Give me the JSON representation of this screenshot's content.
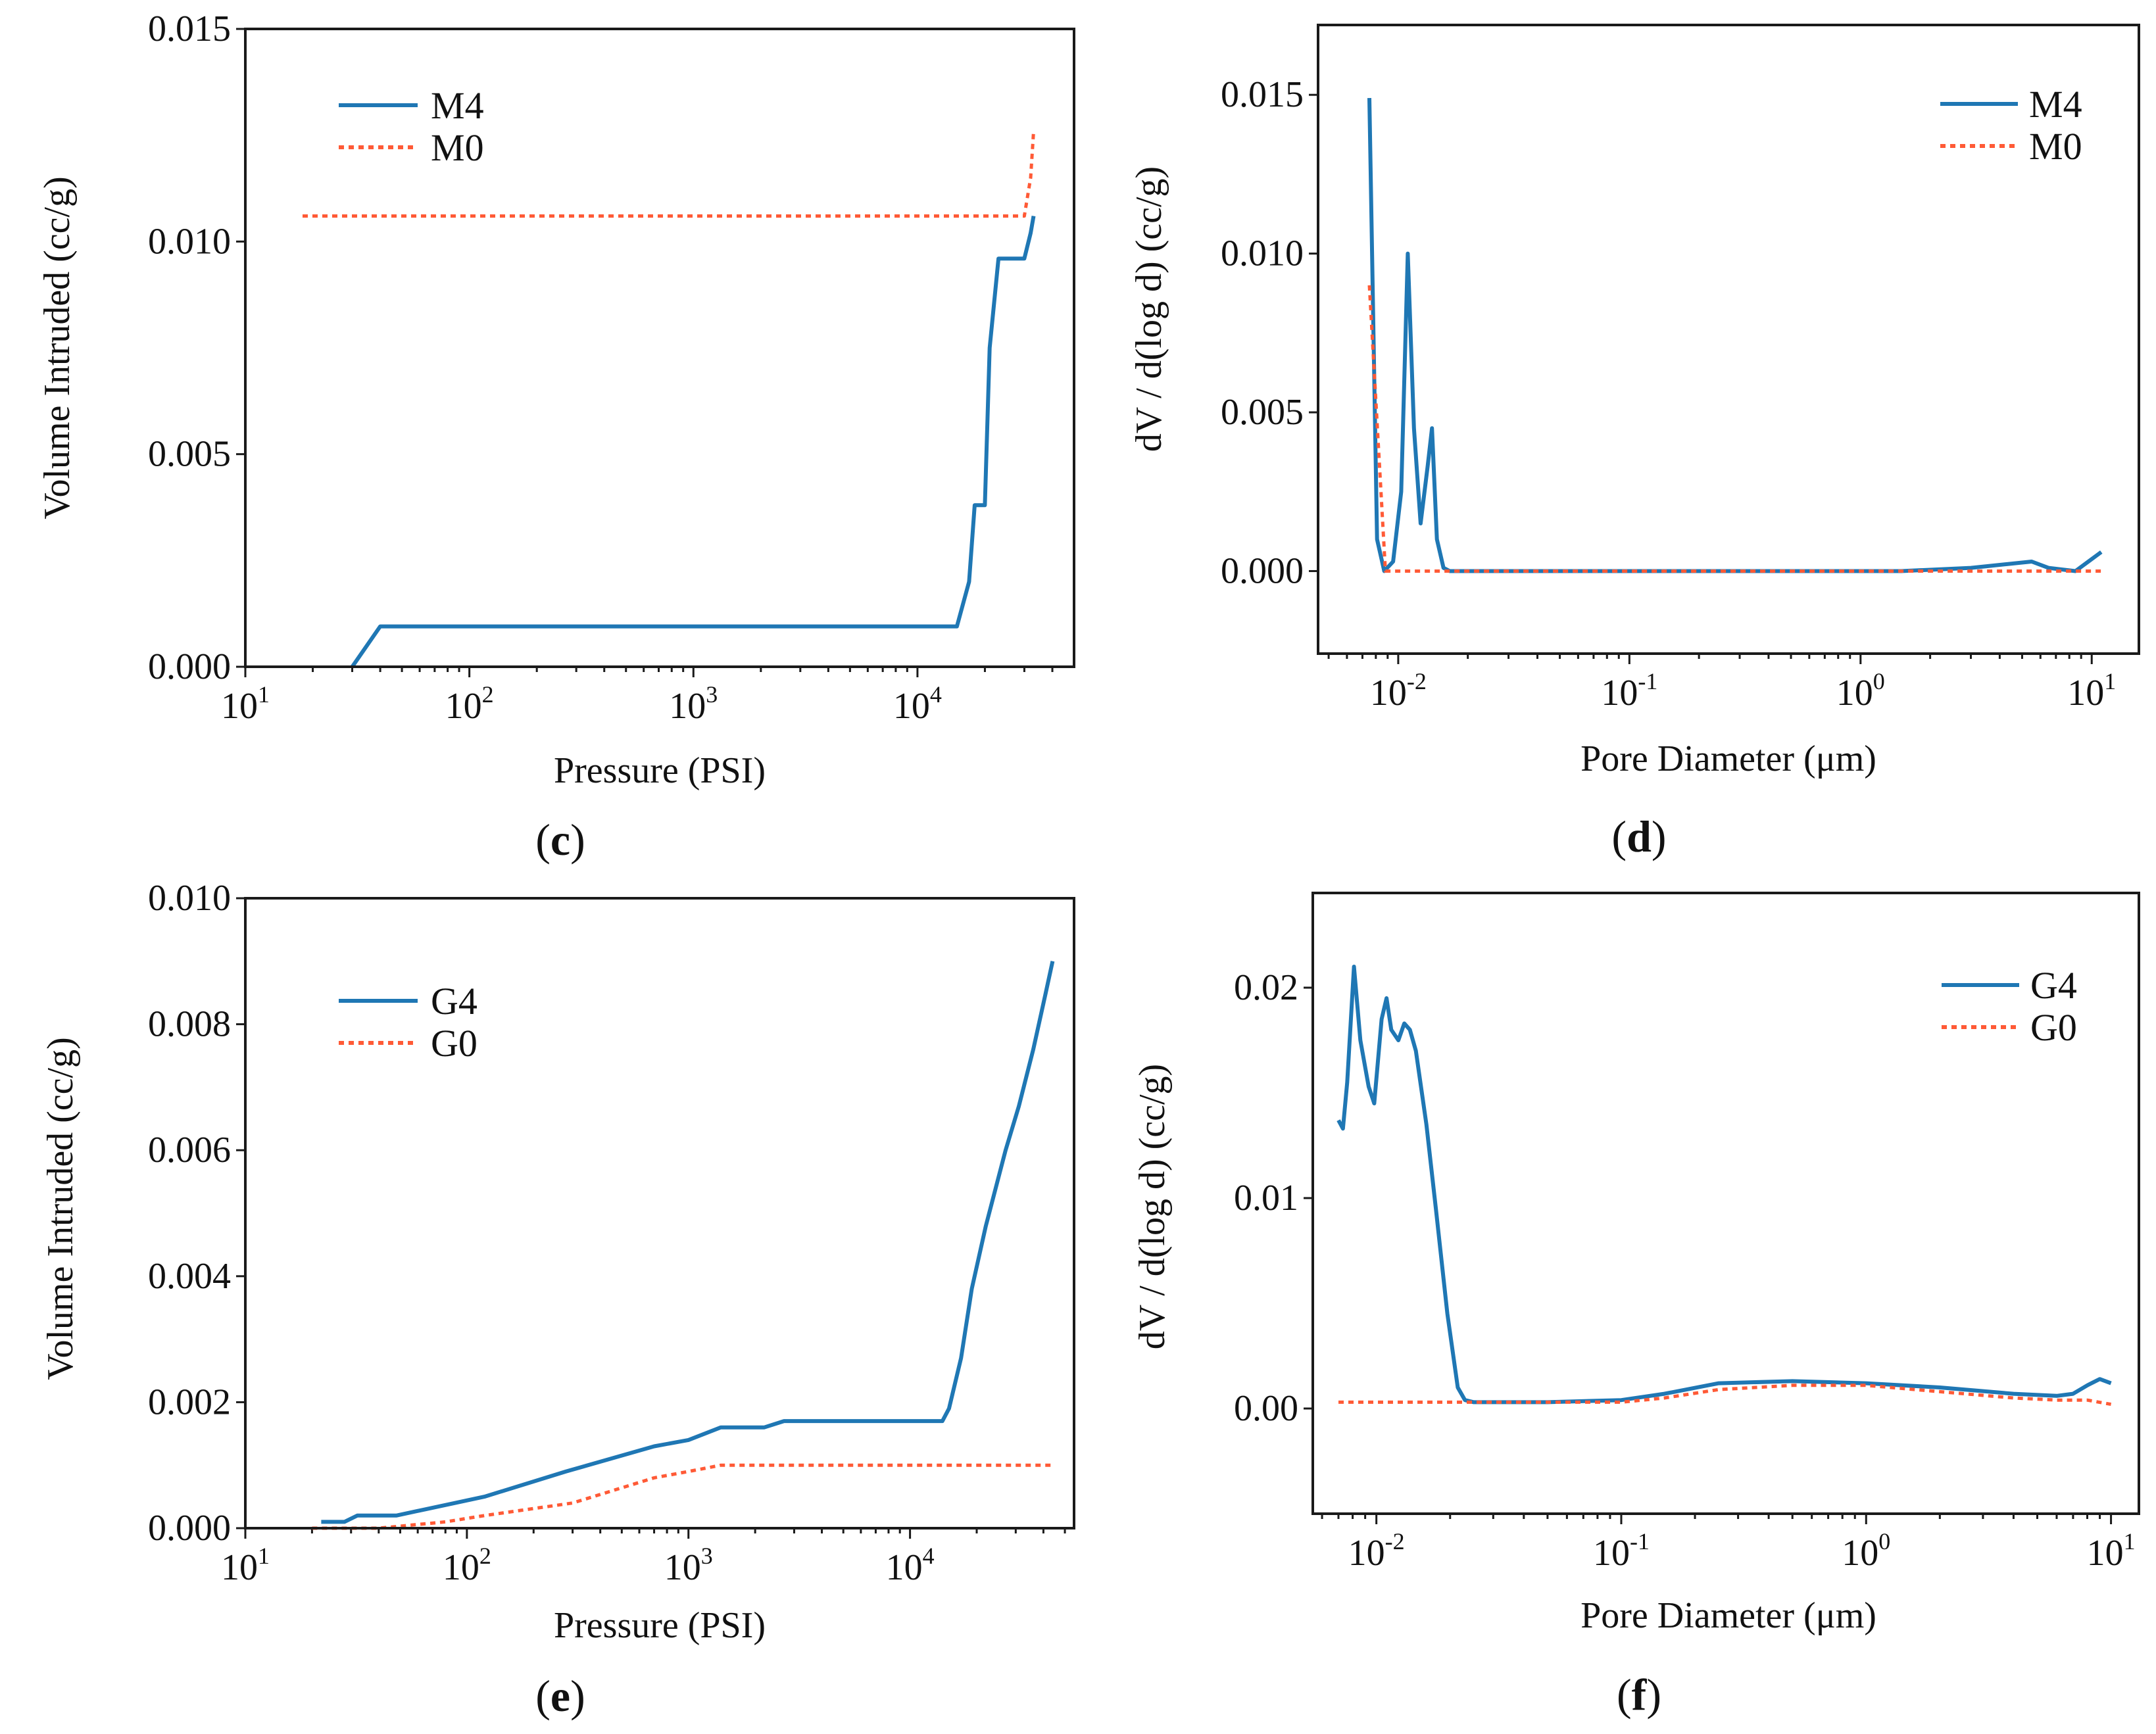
{
  "colors": {
    "series_solid": "#1f77b4",
    "series_dotted": "#ff5a36",
    "axis": "#1a1a1a"
  },
  "chart_data": [
    {
      "panel": "c",
      "type": "line",
      "xscale": "log",
      "xlabel": "Pressure (PSI)",
      "ylabel": "Volume Intruded (cc/g)",
      "xlim": [
        10,
        50000
      ],
      "ylim": [
        0,
        0.015
      ],
      "yticks": [
        "0.000",
        "0.005",
        "0.010",
        "0.015"
      ],
      "xticks": [
        {
          "base": "10",
          "exp": "1"
        },
        {
          "base": "10",
          "exp": "2"
        },
        {
          "base": "10",
          "exp": "3"
        },
        {
          "base": "10",
          "exp": "4"
        }
      ],
      "legend_loc": "upper-left",
      "series": [
        {
          "name": "M4",
          "style": "solid",
          "x": [
            30,
            40,
            15000,
            17000,
            18000,
            20000,
            21000,
            23000,
            25000,
            30000,
            32000,
            33000
          ],
          "y": [
            0,
            0.00095,
            0.00095,
            0.002,
            0.0038,
            0.0038,
            0.0075,
            0.0096,
            0.0096,
            0.0096,
            0.0102,
            0.0106
          ]
        },
        {
          "name": "M0",
          "style": "dotted",
          "x": [
            18,
            30000,
            32000,
            33000
          ],
          "y": [
            0.0106,
            0.0106,
            0.0115,
            0.0126
          ]
        }
      ]
    },
    {
      "panel": "d",
      "type": "line",
      "xscale": "log",
      "xlabel": "Pore Diameter (μm)",
      "ylabel": "dV / d(log d) (cc/g)",
      "xlim": [
        0.0045,
        16
      ],
      "ylim": [
        -0.0026,
        0.0172
      ],
      "yticks": [
        "0.000",
        "0.005",
        "0.010",
        "0.015"
      ],
      "xticks": [
        {
          "base": "10",
          "exp": "-2"
        },
        {
          "base": "10",
          "exp": "-1"
        },
        {
          "base": "10",
          "exp": "0"
        },
        {
          "base": "10",
          "exp": "1"
        }
      ],
      "legend_loc": "upper-right",
      "series": [
        {
          "name": "M4",
          "style": "solid",
          "x": [
            0.0075,
            0.0081,
            0.0087,
            0.0095,
            0.0103,
            0.011,
            0.0117,
            0.0125,
            0.0134,
            0.014,
            0.0147,
            0.0157,
            0.0167,
            0.05,
            0.5,
            1.5,
            3,
            5.5,
            6.5,
            8.5,
            11
          ],
          "y": [
            0.0149,
            0.001,
            0.0,
            0.0003,
            0.0025,
            0.01,
            0.0045,
            0.0015,
            0.0033,
            0.0045,
            0.001,
            0.0001,
            0.0,
            0.0,
            0.0,
            0.0,
            0.0001,
            0.0003,
            0.0001,
            0.0,
            0.0006
          ]
        },
        {
          "name": "M0",
          "style": "dotted",
          "x": [
            0.0075,
            0.0088,
            0.0095,
            11
          ],
          "y": [
            0.009,
            0.0,
            0.0,
            0.0
          ]
        }
      ]
    },
    {
      "panel": "e",
      "type": "line",
      "xscale": "log",
      "xlabel": "Pressure (PSI)",
      "ylabel": "Volume Intruded (cc/g)",
      "xlim": [
        10,
        55000
      ],
      "ylim": [
        0,
        0.01
      ],
      "yticks": [
        "0.000",
        "0.002",
        "0.004",
        "0.006",
        "0.008",
        "0.010"
      ],
      "xticks": [
        {
          "base": "10",
          "exp": "1"
        },
        {
          "base": "10",
          "exp": "2"
        },
        {
          "base": "10",
          "exp": "3"
        },
        {
          "base": "10",
          "exp": "4"
        }
      ],
      "legend_loc": "upper-left",
      "series": [
        {
          "name": "G4",
          "style": "solid",
          "x": [
            22,
            28,
            32,
            48,
            65,
            120,
            280,
            700,
            1000,
            1400,
            2200,
            2700,
            5000,
            14000,
            15000,
            17000,
            19000,
            22000,
            27000,
            31000,
            36000,
            41000,
            44000
          ],
          "y": [
            0.0001,
            0.0001,
            0.0002,
            0.0002,
            0.0003,
            0.0005,
            0.0009,
            0.0013,
            0.0014,
            0.0016,
            0.0016,
            0.0017,
            0.0017,
            0.0017,
            0.0019,
            0.0027,
            0.0038,
            0.0048,
            0.006,
            0.0067,
            0.0076,
            0.0085,
            0.009
          ]
        },
        {
          "name": "G0",
          "style": "dotted",
          "x": [
            20,
            40,
            80,
            120,
            300,
            700,
            1000,
            1400,
            44000
          ],
          "y": [
            0,
            0,
            0.0001,
            0.0002,
            0.0004,
            0.0008,
            0.0009,
            0.001,
            0.001
          ]
        }
      ]
    },
    {
      "panel": "f",
      "type": "line",
      "xscale": "log",
      "xlabel": "Pore Diameter (μm)",
      "ylabel": "dV / d(log d) (cc/g)",
      "xlim": [
        0.0055,
        13
      ],
      "ylim": [
        -0.005,
        0.0245
      ],
      "yticks": [
        "0.00",
        "0.01",
        "0.02"
      ],
      "xticks": [
        {
          "base": "10",
          "exp": "-2"
        },
        {
          "base": "10",
          "exp": "-1"
        },
        {
          "base": "10",
          "exp": "0"
        },
        {
          "base": "10",
          "exp": "1"
        }
      ],
      "legend_loc": "upper-right",
      "series": [
        {
          "name": "G4",
          "style": "solid",
          "x": [
            0.007,
            0.0073,
            0.0076,
            0.0081,
            0.0086,
            0.0093,
            0.0098,
            0.0105,
            0.011,
            0.0115,
            0.0123,
            0.013,
            0.0137,
            0.0145,
            0.016,
            0.0175,
            0.0195,
            0.0215,
            0.023,
            0.025,
            0.05,
            0.1,
            0.15,
            0.25,
            0.5,
            1,
            2,
            4,
            6,
            7,
            8,
            9,
            10
          ],
          "y": [
            0.0137,
            0.0133,
            0.0155,
            0.021,
            0.0175,
            0.0153,
            0.0145,
            0.0185,
            0.0195,
            0.018,
            0.0175,
            0.0183,
            0.018,
            0.017,
            0.0135,
            0.0095,
            0.0045,
            0.001,
            0.0004,
            0.0003,
            0.0003,
            0.0004,
            0.0007,
            0.0012,
            0.0013,
            0.0012,
            0.001,
            0.0007,
            0.0006,
            0.0007,
            0.0011,
            0.0014,
            0.0012
          ]
        },
        {
          "name": "G0",
          "style": "dotted",
          "x": [
            0.007,
            0.025,
            0.1,
            0.15,
            0.25,
            0.5,
            1,
            2,
            4,
            6,
            8,
            10
          ],
          "y": [
            0.0003,
            0.0003,
            0.0003,
            0.0005,
            0.0009,
            0.0011,
            0.0011,
            0.0008,
            0.0005,
            0.0004,
            0.0004,
            0.0002
          ]
        }
      ]
    }
  ]
}
